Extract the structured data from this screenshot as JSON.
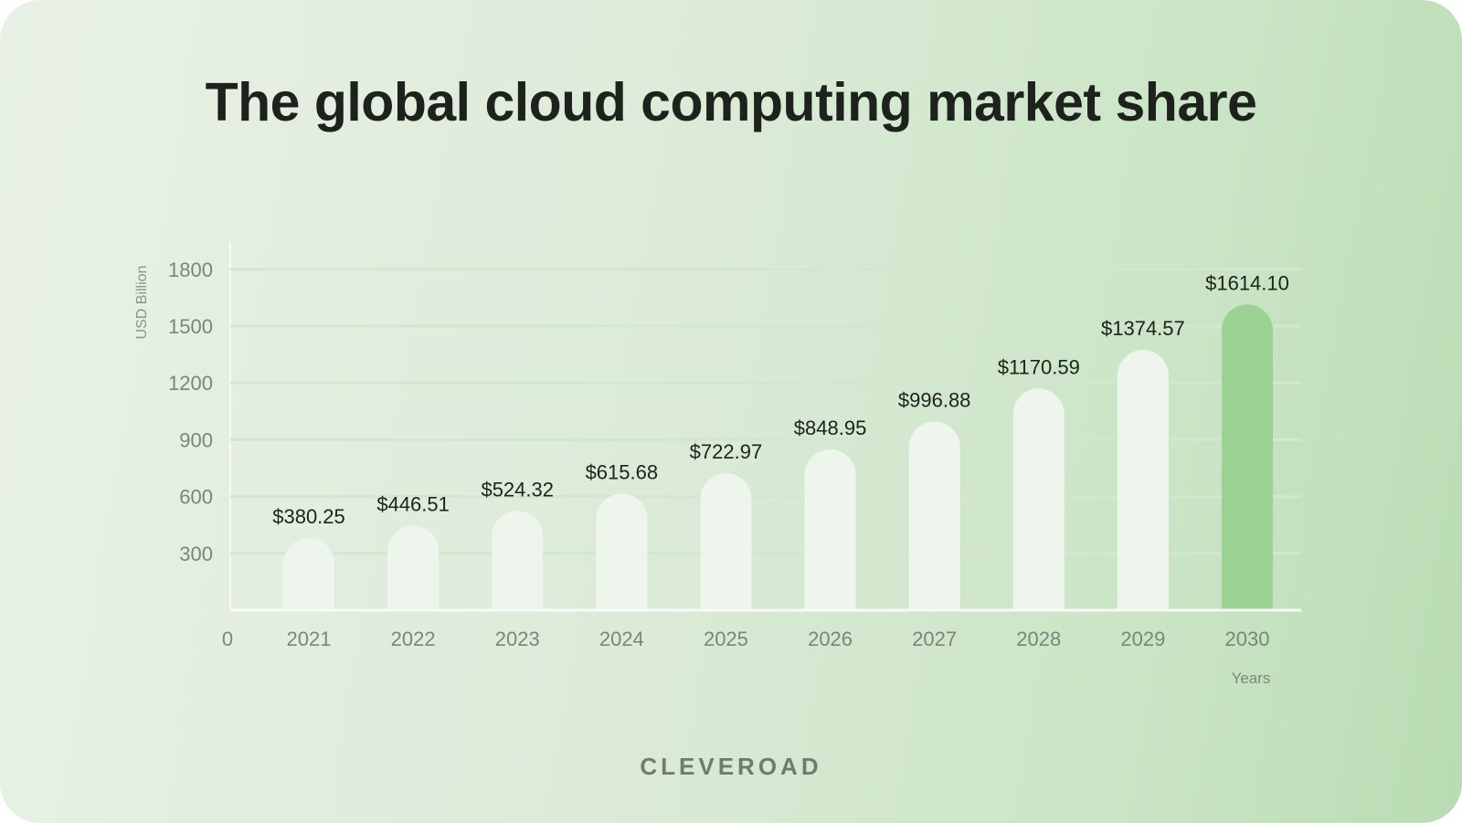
{
  "chart_data": {
    "type": "bar",
    "title": "The global cloud computing market share",
    "xlabel": "Years",
    "ylabel": "USD Billion",
    "categories": [
      "2021",
      "2022",
      "2023",
      "2024",
      "2025",
      "2026",
      "2027",
      "2028",
      "2029",
      "2030"
    ],
    "values": [
      380.25,
      446.51,
      524.32,
      615.68,
      722.97,
      848.95,
      996.88,
      1170.59,
      1374.57,
      1614.1
    ],
    "data_labels": [
      "$380.25",
      "$446.51",
      "$524.32",
      "$615.68",
      "$722.97",
      "$848.95",
      "$996.88",
      "$1170.59",
      "$1374.57",
      "$1614.10"
    ],
    "y_ticks": [
      "0",
      "300",
      "600",
      "900",
      "1200",
      "1500",
      "1800"
    ],
    "ylim": [
      0,
      1800
    ],
    "grid": true,
    "highlight_category": "2030",
    "colors": {
      "bar": "#edf5ec",
      "highlight": "#9cd395",
      "grid": "#d3e6cf",
      "axis": "#f7fbf6"
    }
  },
  "brand": "CLEVEROAD"
}
